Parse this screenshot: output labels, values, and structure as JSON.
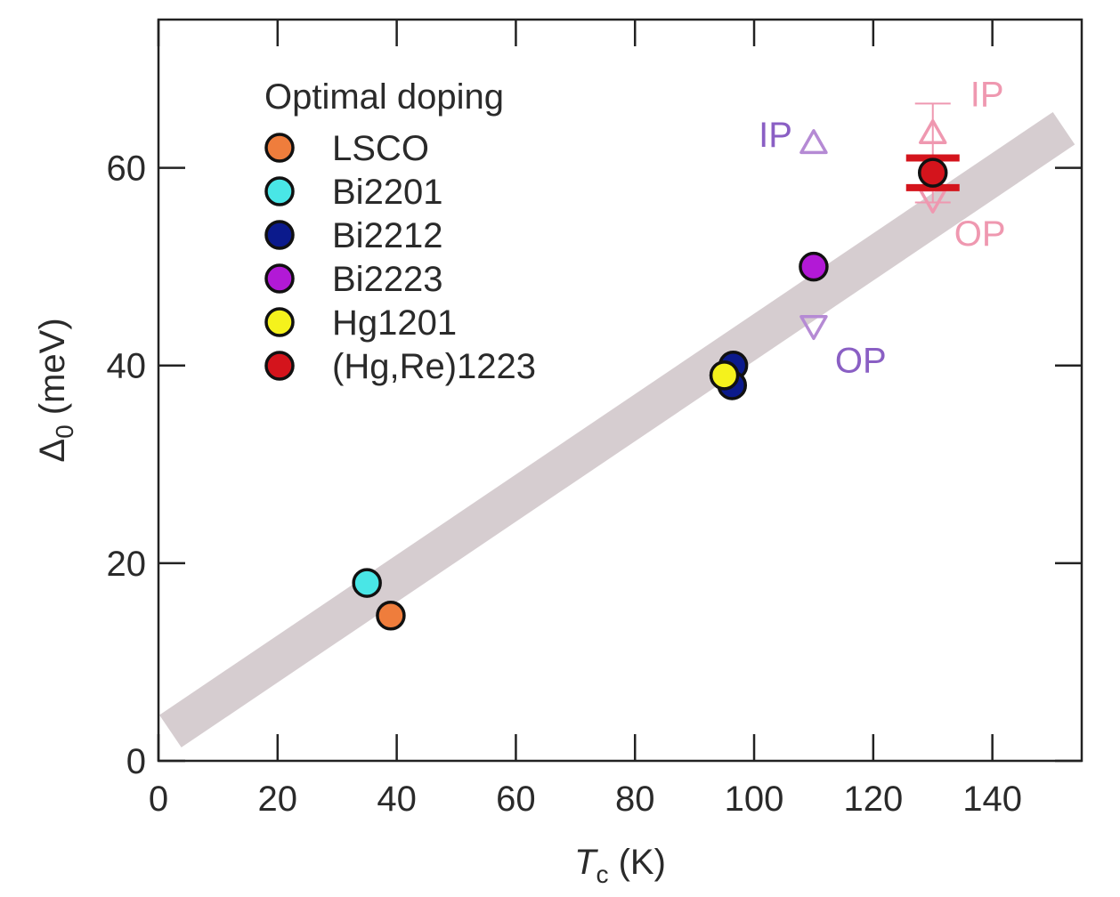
{
  "chart_data": {
    "type": "scatter",
    "title": "",
    "xlabel": {
      "symbol": "T",
      "subscript": "c",
      "unit": " (K)"
    },
    "ylabel": {
      "symbol": "Δ",
      "subscript": "0",
      "unit": " (meV)"
    },
    "xlim": [
      0,
      155
    ],
    "ylim": [
      0,
      75
    ],
    "xticks": [
      0,
      20,
      40,
      60,
      80,
      100,
      120,
      140
    ],
    "yticks": [
      0,
      20,
      40,
      60
    ],
    "grid": false,
    "legend": {
      "title": "Optimal doping",
      "placement": "top-left"
    },
    "trend_band": {
      "color": "#d6cdd0",
      "x": [
        2,
        152
      ],
      "y": [
        3,
        64
      ]
    },
    "series": [
      {
        "name": "LSCO",
        "color": "#ef7d3c",
        "points": [
          {
            "x": 39,
            "y": 14.7
          }
        ]
      },
      {
        "name": "Bi2201",
        "color": "#49e6e6",
        "points": [
          {
            "x": 35,
            "y": 18
          }
        ]
      },
      {
        "name": "Bi2212",
        "color": "#0b1a8c",
        "points": [
          {
            "x": 96.5,
            "y": 40
          },
          {
            "x": 96.3,
            "y": 38
          }
        ]
      },
      {
        "name": "Bi2223",
        "color": "#b219d6",
        "points": [
          {
            "x": 110,
            "y": 50
          }
        ]
      },
      {
        "name": "Hg1201",
        "color": "#f5f21c",
        "points": [
          {
            "x": 95,
            "y": 39
          }
        ]
      },
      {
        "name": "(Hg,Re)1223",
        "color": "#d4141c",
        "points": [
          {
            "x": 130,
            "y": 59.5
          }
        ]
      }
    ],
    "error_band": {
      "series": "(Hg,Re)1223",
      "x": 130,
      "y_upper": 61,
      "y_lower": 58,
      "color": "#d4141c"
    },
    "open_markers": [
      {
        "label": "IP",
        "shape": "triangle-up",
        "x": 110,
        "y": 62.5,
        "color": "#b58ad4",
        "label_color": "#8a5fc4",
        "label_side": "left"
      },
      {
        "label": "OP",
        "shape": "triangle-down",
        "x": 110,
        "y": 44,
        "color": "#b58ad4",
        "label_color": "#8a5fc4",
        "label_side": "right-below"
      },
      {
        "label": "IP",
        "shape": "triangle-up",
        "x": 130,
        "y": 63.5,
        "color": "#ef98b0",
        "label_color": "#ef98b0",
        "label_side": "right-above",
        "err_upper": 66.5,
        "err_lower": 56.5
      },
      {
        "label": "OP",
        "shape": "triangle-down",
        "x": 130,
        "y": 56.8,
        "color": "#ef98b0",
        "label_color": "#ef98b0",
        "label_side": "right-below"
      }
    ]
  }
}
